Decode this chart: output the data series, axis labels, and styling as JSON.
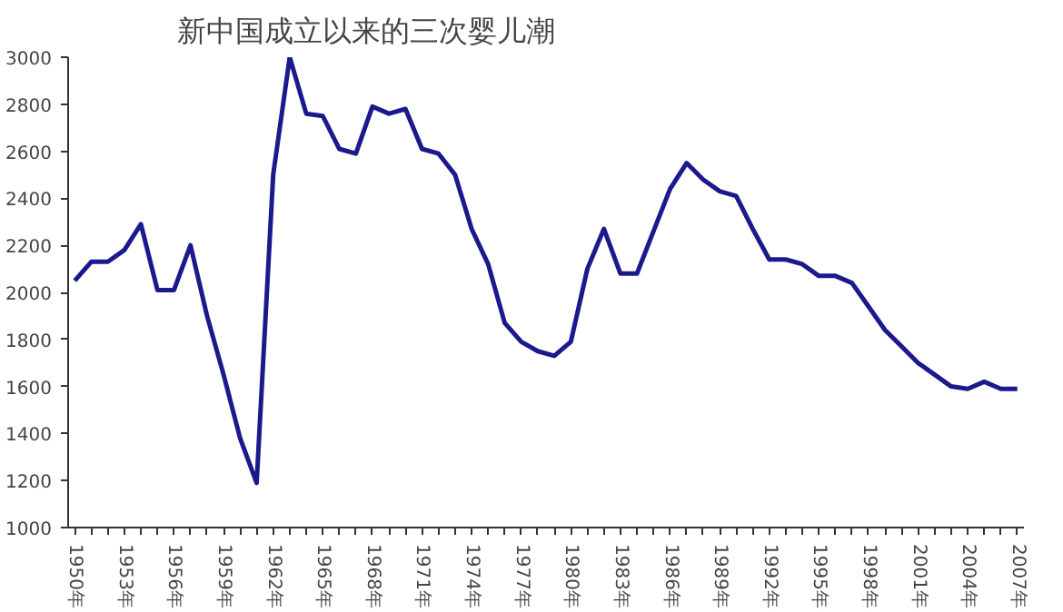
{
  "chart_data": {
    "type": "line",
    "title": "新中国成立以来的三次婴儿潮",
    "x": [
      1950,
      1951,
      1952,
      1953,
      1954,
      1955,
      1956,
      1957,
      1958,
      1959,
      1960,
      1961,
      1962,
      1963,
      1964,
      1965,
      1966,
      1967,
      1968,
      1969,
      1970,
      1971,
      1972,
      1973,
      1974,
      1975,
      1976,
      1977,
      1978,
      1979,
      1980,
      1981,
      1982,
      1983,
      1984,
      1985,
      1986,
      1987,
      1988,
      1989,
      1990,
      1991,
      1992,
      1993,
      1994,
      1995,
      1996,
      1997,
      1998,
      1999,
      2000,
      2001,
      2002,
      2003,
      2004,
      2005,
      2006,
      2007
    ],
    "series": [
      {
        "color": "#1a1a8c",
        "values": [
          2050,
          2130,
          2130,
          2180,
          2290,
          2010,
          2010,
          2200,
          1900,
          1650,
          1380,
          1190,
          2500,
          3000,
          2760,
          2750,
          2610,
          2590,
          2790,
          2760,
          2780,
          2610,
          2590,
          2500,
          2270,
          2120,
          1870,
          1790,
          1750,
          1730,
          1790,
          2100,
          2270,
          2080,
          2080,
          2260,
          2440,
          2550,
          2480,
          2430,
          2410,
          2270,
          2140,
          2140,
          2120,
          2070,
          2070,
          2040,
          1940,
          1840,
          1770,
          1700,
          1650,
          1600,
          1590,
          1620,
          1590,
          1590
        ]
      }
    ],
    "xlim": [
      1949.6,
      2007.4
    ],
    "ylim": [
      1000,
      3000
    ],
    "yticks": [
      1000,
      1200,
      1400,
      1600,
      1800,
      2000,
      2200,
      2400,
      2600,
      2800,
      3000
    ],
    "xticks": [
      {
        "value": 1950,
        "label": "1950年"
      },
      {
        "value": 1951,
        "label": null
      },
      {
        "value": 1952,
        "label": null
      },
      {
        "value": 1953,
        "label": "1953年"
      },
      {
        "value": 1954,
        "label": null
      },
      {
        "value": 1955,
        "label": null
      },
      {
        "value": 1956,
        "label": "1956年"
      },
      {
        "value": 1957,
        "label": null
      },
      {
        "value": 1958,
        "label": null
      },
      {
        "value": 1959,
        "label": "1959年"
      },
      {
        "value": 1960,
        "label": null
      },
      {
        "value": 1961,
        "label": null
      },
      {
        "value": 1962,
        "label": "1962年"
      },
      {
        "value": 1963,
        "label": null
      },
      {
        "value": 1964,
        "label": null
      },
      {
        "value": 1965,
        "label": "1965年"
      },
      {
        "value": 1966,
        "label": null
      },
      {
        "value": 1967,
        "label": null
      },
      {
        "value": 1968,
        "label": "1968年"
      },
      {
        "value": 1969,
        "label": null
      },
      {
        "value": 1970,
        "label": null
      },
      {
        "value": 1971,
        "label": "1971年"
      },
      {
        "value": 1972,
        "label": null
      },
      {
        "value": 1973,
        "label": null
      },
      {
        "value": 1974,
        "label": "1974年"
      },
      {
        "value": 1975,
        "label": null
      },
      {
        "value": 1976,
        "label": null
      },
      {
        "value": 1977,
        "label": "1977年"
      },
      {
        "value": 1978,
        "label": null
      },
      {
        "value": 1979,
        "label": null
      },
      {
        "value": 1980,
        "label": "1980年"
      },
      {
        "value": 1981,
        "label": null
      },
      {
        "value": 1982,
        "label": null
      },
      {
        "value": 1983,
        "label": "1983年"
      },
      {
        "value": 1984,
        "label": null
      },
      {
        "value": 1985,
        "label": null
      },
      {
        "value": 1986,
        "label": "1986年"
      },
      {
        "value": 1987,
        "label": null
      },
      {
        "value": 1988,
        "label": null
      },
      {
        "value": 1989,
        "label": "1989年"
      },
      {
        "value": 1990,
        "label": null
      },
      {
        "value": 1991,
        "label": null
      },
      {
        "value": 1992,
        "label": "1992年"
      },
      {
        "value": 1993,
        "label": null
      },
      {
        "value": 1994,
        "label": null
      },
      {
        "value": 1995,
        "label": "1995年"
      },
      {
        "value": 1996,
        "label": null
      },
      {
        "value": 1997,
        "label": null
      },
      {
        "value": 1998,
        "label": "1998年"
      },
      {
        "value": 1999,
        "label": null
      },
      {
        "value": 2000,
        "label": null
      },
      {
        "value": 2001,
        "label": "2001年"
      },
      {
        "value": 2002,
        "label": null
      },
      {
        "value": 2003,
        "label": null
      },
      {
        "value": 2004,
        "label": "2004年"
      },
      {
        "value": 2005,
        "label": null
      },
      {
        "value": 2006,
        "label": null
      },
      {
        "value": 2007,
        "label": "2007年"
      }
    ],
    "grid": false,
    "marker": "none",
    "line_style": "solid"
  }
}
